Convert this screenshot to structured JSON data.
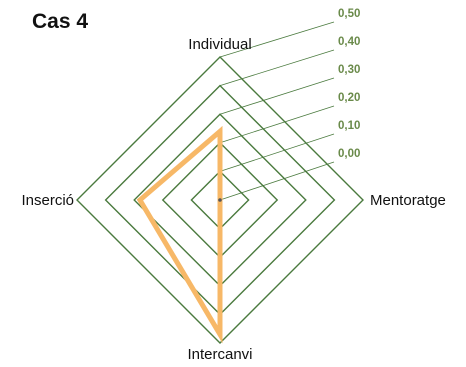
{
  "chart_data": {
    "type": "radar",
    "title": "Cas 4",
    "axes": [
      "Individual",
      "Mentoratge",
      "Intercanvi",
      "Inserció"
    ],
    "ticks": [
      "0,00",
      "0,10",
      "0,20",
      "0,30",
      "0,40",
      "0,50"
    ],
    "range": [
      0,
      0.5
    ],
    "grid": true,
    "series": [
      {
        "values": [
          0.24,
          0.0,
          0.47,
          0.28
        ]
      }
    ],
    "colors": {
      "grid": "#4a7a3e",
      "tick_label": "#6a8a4a",
      "series": "#f7b867"
    }
  }
}
